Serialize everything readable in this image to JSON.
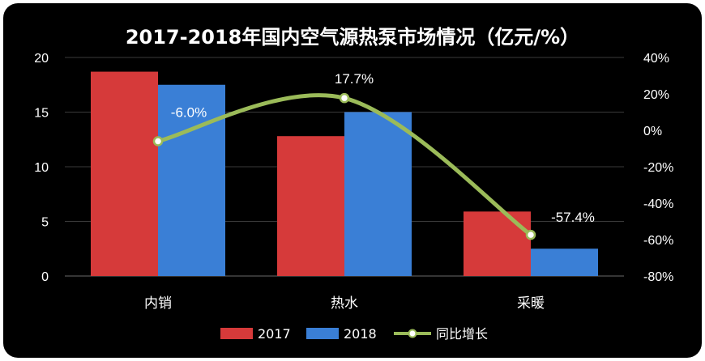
{
  "chart_data": {
    "type": "bar",
    "title": "2017-2018年国内空气源热泵市场情况（亿元/%）",
    "categories": [
      "内销",
      "热水",
      "采暖"
    ],
    "series": [
      {
        "name": "2017",
        "kind": "bar",
        "axis": "left",
        "color": "#d63a3a",
        "values": [
          18.7,
          12.8,
          5.9
        ]
      },
      {
        "name": "2018",
        "kind": "bar",
        "axis": "left",
        "color": "#3a7fd6",
        "values": [
          17.5,
          15.0,
          2.5
        ]
      },
      {
        "name": "同比增长",
        "kind": "line",
        "axis": "right",
        "color": "#9bbb59",
        "values": [
          -6.0,
          17.7,
          -57.4
        ]
      }
    ],
    "data_labels": [
      "-6.0%",
      "17.7%",
      "-57.4%"
    ],
    "y_left": {
      "min": 0,
      "max": 20,
      "ticks": [
        "0",
        "5",
        "10",
        "15",
        "20"
      ]
    },
    "y_right": {
      "min": -80,
      "max": 40,
      "ticks": [
        "-80%",
        "-60%",
        "-40%",
        "-20%",
        "0%",
        "20%",
        "40%"
      ]
    },
    "grid": true,
    "legend_position": "bottom"
  }
}
